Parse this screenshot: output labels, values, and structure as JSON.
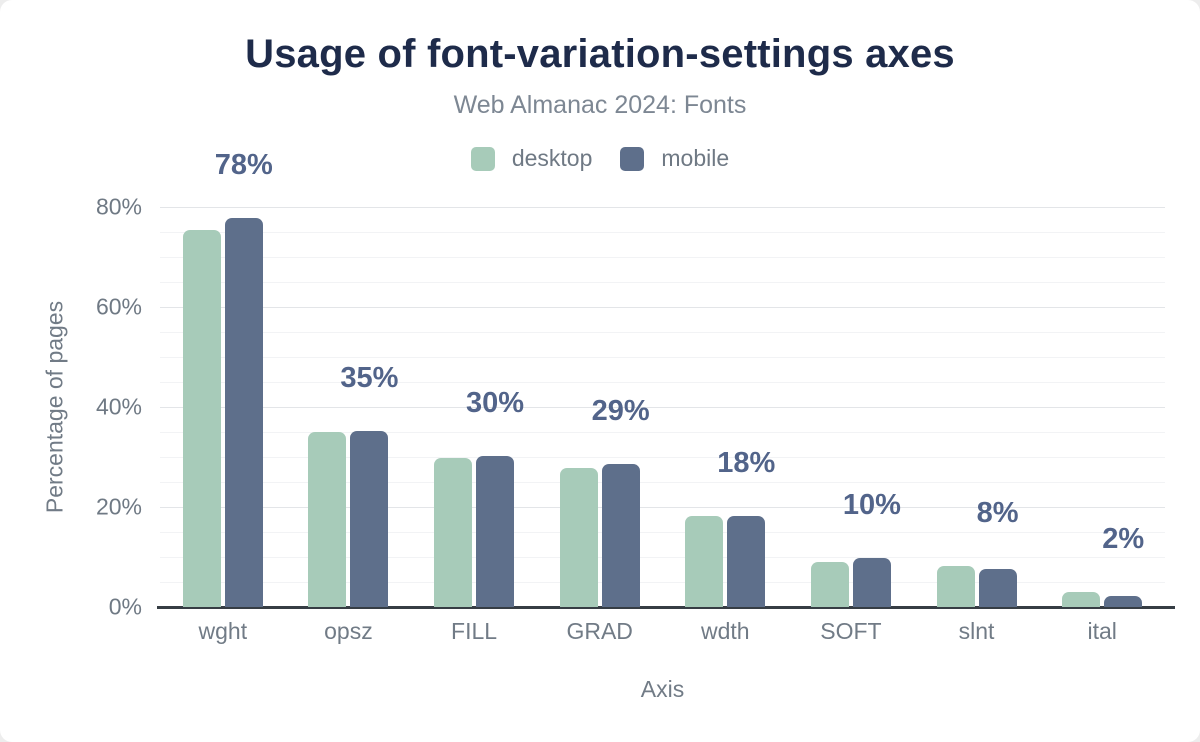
{
  "title": "Usage of font-variation-settings axes",
  "subtitle": "Web Almanac 2024: Fonts",
  "xaxis_title": "Axis",
  "yaxis_title": "Percentage of pages",
  "colors": {
    "title": "#1e2b4a",
    "subtitle_text": "#7d8793",
    "axis_text": "#717b86",
    "data_label": "#52648a",
    "desktop": "#a7cbb9",
    "mobile": "#5e6f8b",
    "axis_line": "#363d44",
    "gridline_major": "#e3e5e8",
    "gridline_minor": "#f2f3f5"
  },
  "chart_data": {
    "type": "bar",
    "title": "Usage of font-variation-settings axes",
    "subtitle": "Web Almanac 2024: Fonts",
    "categories": [
      "wght",
      "opsz",
      "FILL",
      "GRAD",
      "wdth",
      "SOFT",
      "slnt",
      "ital"
    ],
    "series": [
      {
        "name": "desktop",
        "color": "#a7cbb9",
        "values": [
          75.5,
          35.0,
          29.8,
          27.8,
          18.2,
          9.0,
          8.3,
          3.0
        ]
      },
      {
        "name": "mobile",
        "color": "#5e6f8b",
        "values": [
          77.9,
          35.2,
          30.2,
          28.7,
          18.2,
          9.8,
          7.7,
          2.3
        ]
      }
    ],
    "bar_labels": [
      "78%",
      "35%",
      "30%",
      "29%",
      "18%",
      "10%",
      "8%",
      "2%"
    ],
    "xlabel": "Axis",
    "ylabel": "Percentage of pages",
    "ylim": [
      0,
      80
    ],
    "yticks": [
      "80%",
      "60%",
      "40%",
      "20%",
      "0%"
    ],
    "ytick_values": [
      80,
      60,
      40,
      20,
      0
    ],
    "grid": {
      "major_step": 20,
      "minor_step": 5
    },
    "legend_position": "top-center"
  }
}
